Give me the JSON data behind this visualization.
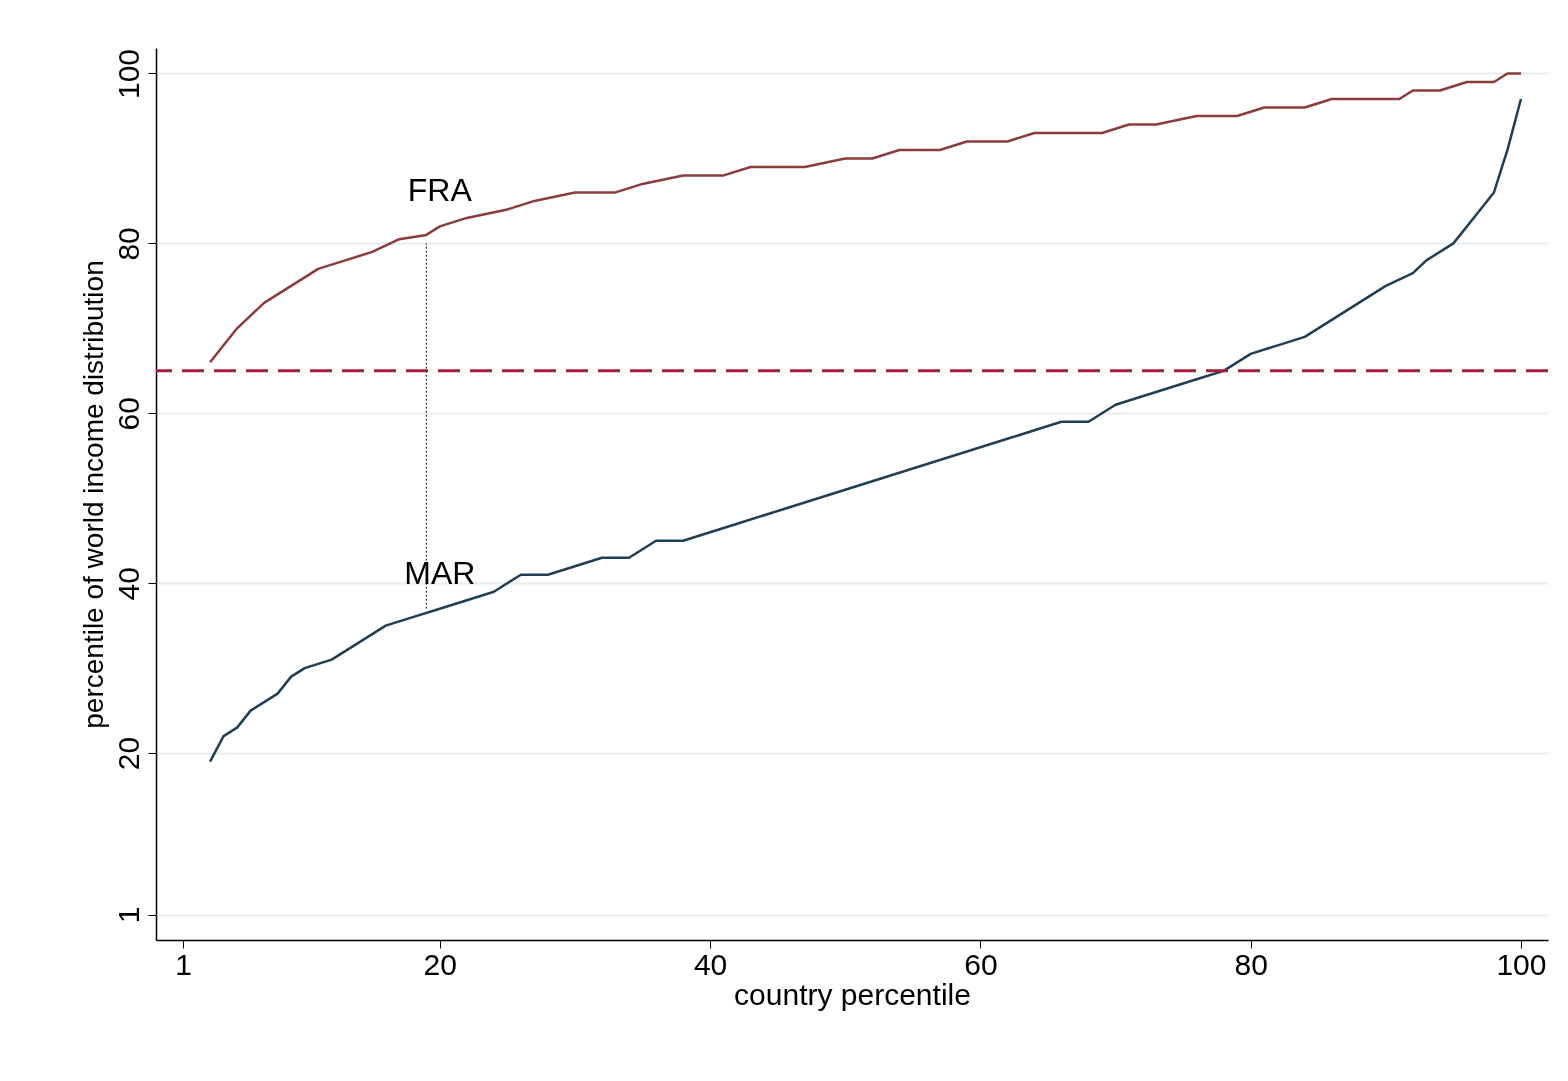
{
  "chart_data": {
    "type": "line",
    "xlabel": "country percentile",
    "ylabel": "percentile of world income distribution",
    "xlim": [
      -1,
      102
    ],
    "ylim": [
      -2,
      103
    ],
    "xticks": [
      1,
      20,
      40,
      60,
      80,
      100
    ],
    "yticks": [
      1,
      20,
      40,
      60,
      80,
      100
    ],
    "grid": "y",
    "marker": "none",
    "series": [
      {
        "name": "FRA",
        "color": "#8c3b3b",
        "line_style": "solid",
        "x": [
          3,
          5,
          7,
          9,
          11,
          13,
          15,
          17,
          19,
          20,
          22,
          25,
          27,
          30,
          33,
          35,
          38,
          41,
          43,
          47,
          50,
          52,
          54,
          57,
          59,
          62,
          64,
          69,
          71,
          73,
          76,
          79,
          81,
          84,
          86,
          91,
          92,
          94,
          96,
          98,
          99,
          100
        ],
        "values": [
          66,
          70,
          73,
          75,
          77,
          78,
          79,
          80.5,
          81,
          82,
          83,
          84,
          85,
          86,
          86,
          87,
          88,
          88,
          89,
          89,
          90,
          90,
          91,
          91,
          92,
          92,
          93,
          93,
          94,
          94,
          95,
          95,
          96,
          96,
          97,
          97,
          98,
          98,
          99,
          99,
          100,
          100
        ]
      },
      {
        "name": "MAR",
        "color": "#1f3f55",
        "line_style": "solid",
        "x": [
          3,
          4,
          5,
          6,
          8,
          9,
          10,
          12,
          14,
          16,
          18,
          20,
          22,
          24,
          26,
          28,
          30,
          32,
          34,
          36,
          38,
          40,
          42,
          44,
          46,
          48,
          50,
          52,
          54,
          56,
          58,
          60,
          62,
          64,
          66,
          68,
          70,
          72,
          74,
          76,
          78,
          80,
          82,
          84,
          86,
          88,
          90,
          92,
          93,
          95,
          97,
          98,
          99,
          100
        ],
        "values": [
          19,
          22,
          23,
          25,
          27,
          29,
          30,
          31,
          33,
          35,
          36,
          37,
          38,
          39,
          41,
          41,
          42,
          43,
          43,
          45,
          45,
          46,
          47,
          48,
          49,
          50,
          51,
          52,
          53,
          54,
          55,
          56,
          57,
          58,
          59,
          59,
          61,
          62,
          63,
          64,
          65,
          67,
          68,
          69,
          71,
          73,
          75,
          76.5,
          78,
          80,
          84,
          86,
          91,
          97
        ]
      },
      {
        "color": "#000000",
        "line_style": "dotted",
        "x": [
          19,
          19
        ],
        "values": [
          37,
          80
        ]
      }
    ],
    "ref_lines": [
      {
        "axis": "y",
        "value": 65,
        "color": "#a0203c",
        "line_style": "dashed"
      }
    ]
  }
}
